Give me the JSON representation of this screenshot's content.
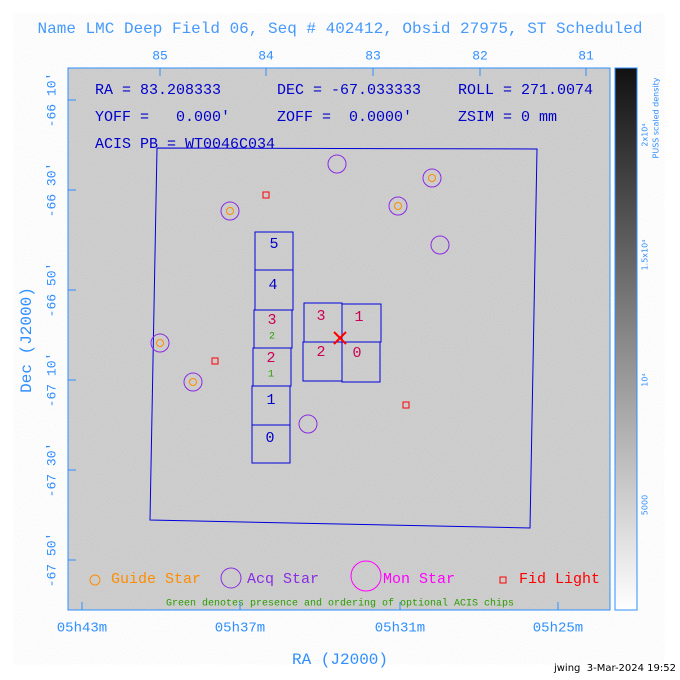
{
  "title": "Name LMC Deep Field 06, Seq # 402412, Obsid 27975, ST Scheduled",
  "info": {
    "ra": "RA = 83.208333",
    "dec": "DEC = -67.033333",
    "roll": "ROLL = 271.0074",
    "yoff": "YOFF =   0.000'",
    "zoff": "ZOFF =  0.0000'",
    "zsim": "ZSIM = 0 mm",
    "acis": "ACIS PB = WT0046C034"
  },
  "top_axis": {
    "labels": [
      "85",
      "84",
      "83",
      "82",
      "81"
    ]
  },
  "left_axis": {
    "title": "Dec (J2000)",
    "labels": [
      "-66 10'",
      "-66 30'",
      "-66 50'",
      "-67 10'",
      "-67 30'",
      "-67 50'"
    ]
  },
  "bottom_axis": {
    "title": "RA (J2000)",
    "labels": [
      "05h43m",
      "05h37m",
      "05h31m",
      "05h25m"
    ]
  },
  "colorbar": {
    "title": "PUSS scaled density",
    "labels": [
      "2x10⁴",
      "1.5x10⁴",
      "10⁴",
      "5000"
    ]
  },
  "chips": {
    "column": [
      "5",
      "4",
      "3",
      "2",
      "1",
      "0"
    ],
    "optional": [
      "2",
      "1"
    ],
    "square": [
      "3",
      "1",
      "2",
      "0"
    ]
  },
  "legend": [
    "Guide Star",
    "Acq Star",
    "Mon Star",
    "Fid Light"
  ],
  "note": "Green denotes presence and ordering of optional ACIS chips",
  "footer": "jwing  3-Mar-2024 19:52"
}
